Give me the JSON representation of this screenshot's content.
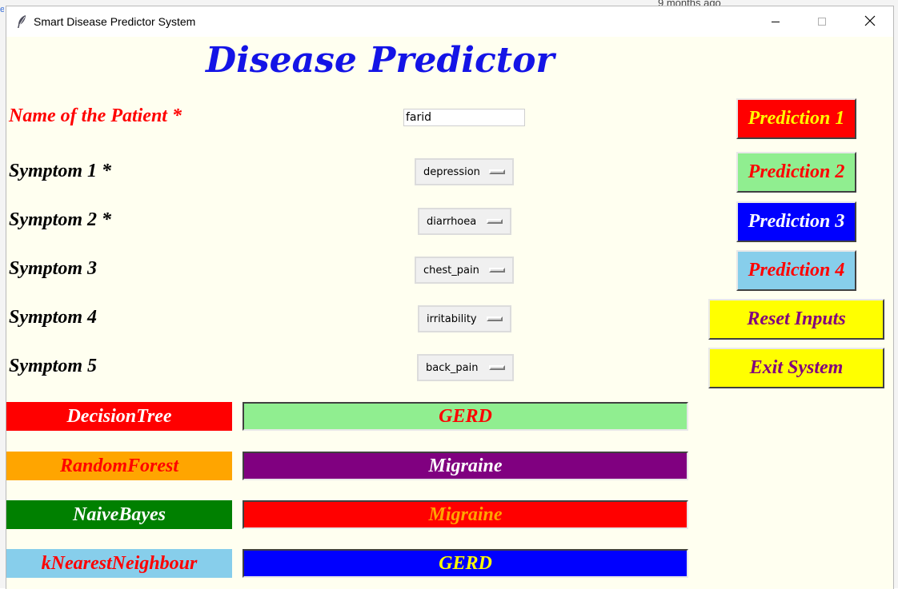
{
  "background": {
    "peek_text": "9 months ago",
    "edge_text": "e"
  },
  "window": {
    "title": "Smart Disease Predictor System",
    "icons": {
      "app": "feather-icon",
      "minimize": "minimize-icon",
      "maximize": "maximize-icon",
      "close": "close-icon"
    }
  },
  "app": {
    "heading": "Disease Predictor",
    "name_label": "Name of the Patient *",
    "name_value": "farid",
    "symptoms": [
      {
        "label": "Symptom 1 *",
        "value": "depression"
      },
      {
        "label": "Symptom 2 *",
        "value": "diarrhoea"
      },
      {
        "label": "Symptom 3",
        "value": "chest_pain"
      },
      {
        "label": "Symptom 4",
        "value": "irritability"
      },
      {
        "label": "Symptom 5",
        "value": "back_pain"
      }
    ],
    "buttons": [
      {
        "label": "Prediction 1",
        "bg": "#ff0000",
        "fg": "#ffff00"
      },
      {
        "label": "Prediction 2",
        "bg": "#90ee90",
        "fg": "#ff0000"
      },
      {
        "label": "Prediction 3",
        "bg": "#0000ff",
        "fg": "#ffffff"
      },
      {
        "label": "Prediction 4",
        "bg": "#87ceeb",
        "fg": "#ff0000"
      },
      {
        "label": "Reset Inputs",
        "bg": "#ffff00",
        "fg": "#800080"
      },
      {
        "label": "Exit System",
        "bg": "#ffff00",
        "fg": "#800080"
      }
    ],
    "results": [
      {
        "algorithm": "DecisionTree",
        "algo_bg": "#ff0000",
        "algo_fg": "#ffffff",
        "prediction": "GERD",
        "result_bg": "#90ee90",
        "result_fg": "#ff0000"
      },
      {
        "algorithm": "RandomForest",
        "algo_bg": "#ffa500",
        "algo_fg": "#ff0000",
        "prediction": "Migraine",
        "result_bg": "#800080",
        "result_fg": "#ffffff"
      },
      {
        "algorithm": "NaiveBayes",
        "algo_bg": "#008000",
        "algo_fg": "#ffffff",
        "prediction": "Migraine",
        "result_bg": "#ff0000",
        "result_fg": "#ffa500"
      },
      {
        "algorithm": "kNearestNeighbour",
        "algo_bg": "#87ceeb",
        "algo_fg": "#ff0000",
        "prediction": "GERD",
        "result_bg": "#0000ff",
        "result_fg": "#ffff00"
      }
    ]
  }
}
